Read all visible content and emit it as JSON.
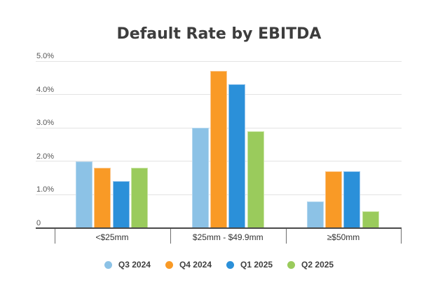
{
  "chart_data": {
    "type": "bar",
    "title": "Default Rate by EBITDA",
    "categories": [
      "<$25mm",
      "$25mm - $49.9mm",
      "≥$50mm"
    ],
    "series": [
      {
        "name": "Q3 2024",
        "color": "#8CC2E6",
        "border_color": "#B5D8F0",
        "values": [
          2.0,
          3.0,
          0.8
        ]
      },
      {
        "name": "Q4 2024",
        "color": "#F99A26",
        "border_color": "#FBC890",
        "values": [
          1.8,
          4.7,
          1.7
        ]
      },
      {
        "name": "Q1 2025",
        "color": "#2B90D9",
        "border_color": "#93C4EC",
        "values": [
          1.4,
          4.3,
          1.7
        ]
      },
      {
        "name": "Q2 2025",
        "color": "#9ACB5C",
        "border_color": "#C8E4A4",
        "values": [
          1.8,
          2.9,
          0.5
        ]
      }
    ],
    "xlabel": "",
    "ylabel": "",
    "ylim": [
      0,
      5
    ],
    "ytick_values": [
      0,
      1,
      2,
      3,
      4,
      5
    ],
    "ytick_labels": [
      "0",
      "1.0%",
      "2.0%",
      "3.0%",
      "4.0%",
      "5.0%"
    ],
    "grid": true,
    "legend_position": "bottom"
  }
}
